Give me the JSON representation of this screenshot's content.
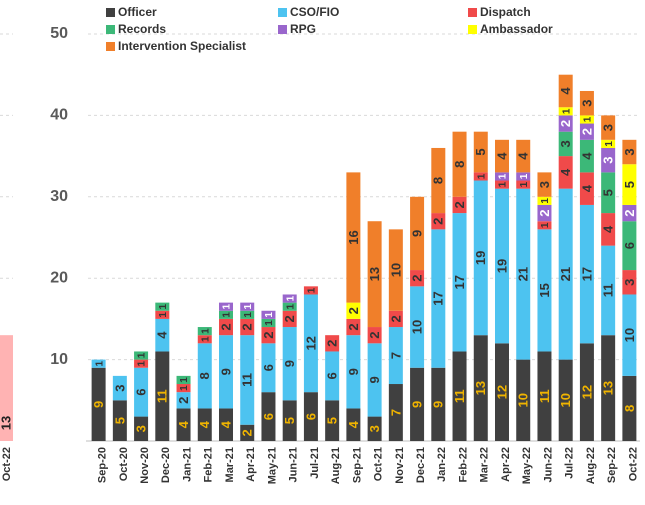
{
  "chart_data": {
    "type": "stacked_bar",
    "categories": [
      "Sep-20",
      "Oct-20",
      "Nov-20",
      "Dec-20",
      "Jan-21",
      "Feb-21",
      "Mar-21",
      "Apr-21",
      "May-21",
      "Jun-21",
      "Jul-21",
      "Aug-21",
      "Sep-21",
      "Oct-21",
      "Nov-21",
      "Dec-21",
      "Jan-22",
      "Feb-22",
      "Mar-22",
      "Apr-22",
      "May-22",
      "Jun-22",
      "Jul-22",
      "Aug-22",
      "Sep-22",
      "Oct-22"
    ],
    "series": [
      {
        "name": "Officer",
        "color": "#404040",
        "label_color": "#f0b400",
        "values": [
          9,
          5,
          3,
          11,
          4,
          4,
          4,
          2,
          6,
          5,
          6,
          5,
          4,
          3,
          7,
          9,
          9,
          11,
          13,
          12,
          10,
          11,
          10,
          12,
          13,
          8
        ]
      },
      {
        "name": "CSO/FIO",
        "color": "#4dc3f0",
        "label_color": "#333333",
        "values": [
          1,
          3,
          6,
          4,
          2,
          8,
          9,
          11,
          6,
          9,
          12,
          6,
          9,
          9,
          7,
          10,
          17,
          17,
          19,
          19,
          21,
          15,
          21,
          17,
          11,
          10
        ]
      },
      {
        "name": "Dispatch",
        "color": "#f04a4a",
        "label_color": "#333333",
        "values": [
          0,
          0,
          1,
          1,
          1,
          1,
          2,
          2,
          2,
          2,
          1,
          2,
          2,
          2,
          2,
          2,
          2,
          2,
          1,
          1,
          1,
          1,
          4,
          4,
          4,
          3
        ]
      },
      {
        "name": "Records",
        "color": "#3cb878",
        "label_color": "#333333",
        "values": [
          0,
          0,
          1,
          1,
          1,
          1,
          1,
          1,
          1,
          1,
          0,
          0,
          0,
          0,
          0,
          0,
          0,
          0,
          0,
          0,
          0,
          0,
          3,
          4,
          5,
          6
        ]
      },
      {
        "name": "RPG",
        "color": "#9966cc",
        "label_color": "#ffffff",
        "values": [
          0,
          0,
          0,
          0,
          0,
          0,
          1,
          1,
          1,
          1,
          0,
          0,
          0,
          0,
          0,
          0,
          0,
          0,
          0,
          1,
          1,
          2,
          2,
          2,
          3,
          2
        ]
      },
      {
        "name": "Ambassador",
        "color": "#ffff00",
        "label_color": "#333333",
        "values": [
          0,
          0,
          0,
          0,
          0,
          0,
          0,
          0,
          0,
          0,
          0,
          0,
          2,
          0,
          0,
          0,
          0,
          0,
          0,
          0,
          0,
          1,
          1,
          1,
          1,
          5
        ]
      },
      {
        "name": "Intervention Specialist",
        "color": "#f07f2a",
        "label_color": "#333333",
        "values": [
          0,
          0,
          0,
          0,
          0,
          0,
          0,
          0,
          0,
          0,
          0,
          0,
          16,
          13,
          10,
          9,
          8,
          8,
          5,
          4,
          4,
          3,
          4,
          3,
          3,
          3
        ]
      }
    ],
    "ylim": [
      0,
      50
    ],
    "yticks": [
      10,
      20,
      30,
      40,
      50
    ],
    "grid": true
  },
  "left_fragment": {
    "category": "Oct-22",
    "value": 13,
    "color": "#ffb3b3"
  }
}
